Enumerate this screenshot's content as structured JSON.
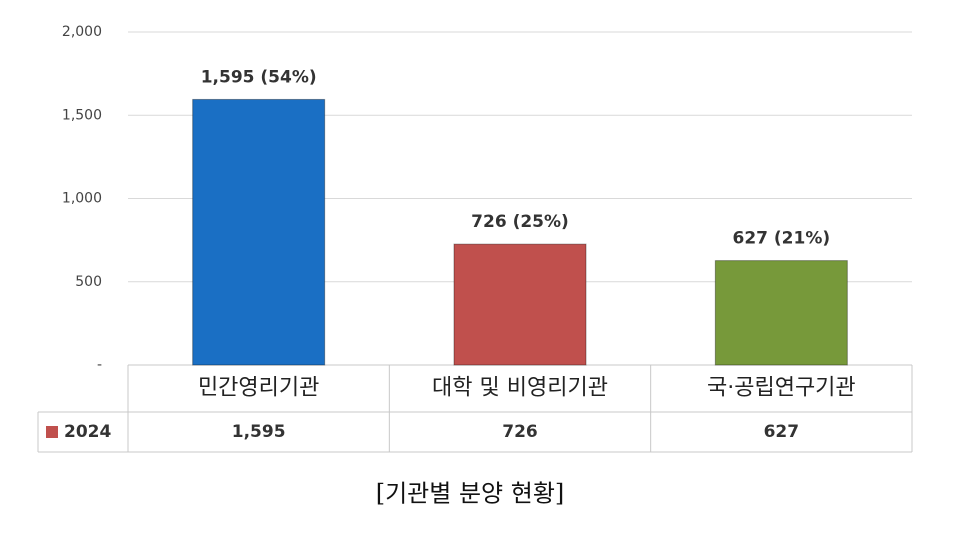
{
  "chart_data": {
    "type": "bar",
    "categories": [
      "민간영리기관",
      "대학 및 비영리기관",
      "국·공립연구기관"
    ],
    "series": [
      {
        "name": "2024",
        "color": "#c0504d",
        "colors": [
          "#1a6fc4",
          "#c0504d",
          "#77993a"
        ],
        "values": [
          1595,
          726,
          627
        ],
        "value_labels": [
          "1,595 (54%)",
          "726 (25%)",
          "627 (21%)"
        ],
        "table_labels": [
          "1,595",
          "726",
          "627"
        ]
      }
    ],
    "ylim": [
      0,
      2000
    ],
    "yticks": [
      {
        "value": 0,
        "label": "-"
      },
      500,
      {
        "value": 1000,
        "label": "1,000"
      },
      {
        "value": 1500,
        "label": "1,500"
      },
      {
        "value": 2000,
        "label": "2,000"
      }
    ],
    "grid": true,
    "caption": "[기관별 분양 현황]"
  }
}
